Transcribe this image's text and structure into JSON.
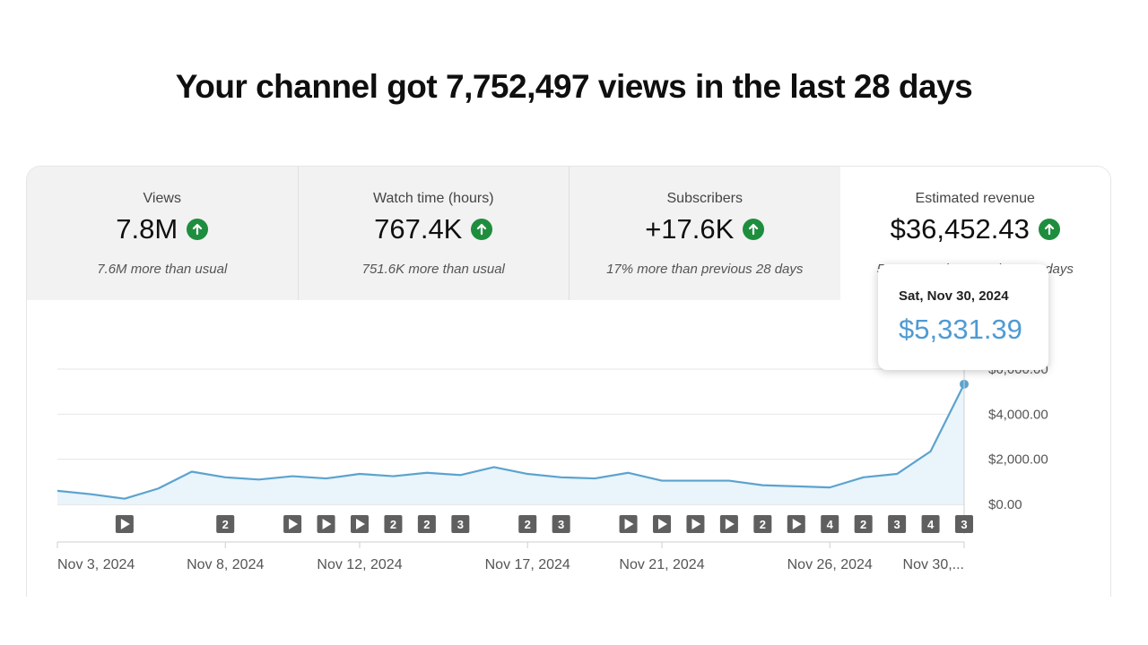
{
  "headline": "Your channel got 7,752,497 views in the last 28 days",
  "metrics": [
    {
      "label": "Views",
      "value": "7.8M",
      "subtext": "7.6M more than usual",
      "trend_icon": "arrow-up-icon",
      "selected": false
    },
    {
      "label": "Watch time (hours)",
      "value": "767.4K",
      "subtext": "751.6K more than usual",
      "trend_icon": "arrow-up-icon",
      "selected": false
    },
    {
      "label": "Subscribers",
      "value": "+17.6K",
      "subtext": "17% more than previous 28 days",
      "trend_icon": "arrow-up-icon",
      "selected": false
    },
    {
      "label": "Estimated revenue",
      "value": "$36,452.43",
      "subtext": "55% more than previous 28 days",
      "trend_icon": "arrow-up-icon",
      "selected": true
    }
  ],
  "tooltip": {
    "date": "Sat, Nov 30, 2024",
    "value": "$5,331.39"
  },
  "colors": {
    "line": "#5ba3cf",
    "fill": "#eaf4fb",
    "up": "#1e8e3e",
    "tooltip_value": "#4f9bd2"
  },
  "chart_data": {
    "type": "area",
    "x": [
      "Nov 3, 2024",
      "Nov 4, 2024",
      "Nov 5, 2024",
      "Nov 6, 2024",
      "Nov 7, 2024",
      "Nov 8, 2024",
      "Nov 9, 2024",
      "Nov 10, 2024",
      "Nov 11, 2024",
      "Nov 12, 2024",
      "Nov 13, 2024",
      "Nov 14, 2024",
      "Nov 15, 2024",
      "Nov 16, 2024",
      "Nov 17, 2024",
      "Nov 18, 2024",
      "Nov 19, 2024",
      "Nov 20, 2024",
      "Nov 21, 2024",
      "Nov 22, 2024",
      "Nov 23, 2024",
      "Nov 24, 2024",
      "Nov 25, 2024",
      "Nov 26, 2024",
      "Nov 27, 2024",
      "Nov 28, 2024",
      "Nov 29, 2024",
      "Nov 30, 2024"
    ],
    "series": [
      {
        "values": [
          600,
          450,
          250,
          700,
          1450,
          1200,
          1100,
          1250,
          1150,
          1350,
          1250,
          1400,
          1300,
          1650,
          1350,
          1200,
          1150,
          1400,
          1050,
          1050,
          1050,
          850,
          800,
          750,
          1200,
          1350,
          2350,
          5331.39
        ]
      }
    ],
    "ylim": [
      0,
      6000
    ],
    "y_ticks": [
      "$0.00",
      "$2,000.00",
      "$4,000.00",
      "$6,000.00"
    ],
    "x_tick_labels": [
      "Nov 3, 2024",
      "Nov 8, 2024",
      "Nov 12, 2024",
      "Nov 17, 2024",
      "Nov 21, 2024",
      "Nov 26, 2024",
      "Nov 30,..."
    ],
    "x_tick_indices": [
      0,
      5,
      9,
      14,
      18,
      23,
      27
    ],
    "grid": true,
    "markers": [
      {
        "index": 2,
        "label": "▶"
      },
      {
        "index": 5,
        "label": "2"
      },
      {
        "index": 7,
        "label": "▶"
      },
      {
        "index": 8,
        "label": "▶"
      },
      {
        "index": 9,
        "label": "▶"
      },
      {
        "index": 10,
        "label": "2"
      },
      {
        "index": 11,
        "label": "2"
      },
      {
        "index": 12,
        "label": "3"
      },
      {
        "index": 14,
        "label": "2"
      },
      {
        "index": 15,
        "label": "3"
      },
      {
        "index": 17,
        "label": "▶"
      },
      {
        "index": 18,
        "label": "▶"
      },
      {
        "index": 19,
        "label": "▶"
      },
      {
        "index": 20,
        "label": "▶"
      },
      {
        "index": 21,
        "label": "2"
      },
      {
        "index": 22,
        "label": "▶"
      },
      {
        "index": 23,
        "label": "4"
      },
      {
        "index": 24,
        "label": "2"
      },
      {
        "index": 25,
        "label": "3"
      },
      {
        "index": 26,
        "label": "4"
      },
      {
        "index": 27,
        "label": "3"
      }
    ]
  }
}
